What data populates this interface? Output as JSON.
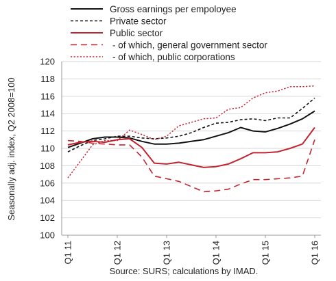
{
  "chart_data": {
    "type": "line",
    "x": [
      "Q1 11",
      "Q2 11",
      "Q3 11",
      "Q4 11",
      "Q1 12",
      "Q2 12",
      "Q3 12",
      "Q4 12",
      "Q1 13",
      "Q2 13",
      "Q3 13",
      "Q4 13",
      "Q1 14",
      "Q2 14",
      "Q3 14",
      "Q4 14",
      "Q1 15",
      "Q2 15",
      "Q3 15",
      "Q4 15",
      "Q1 16"
    ],
    "x_tick_labels": [
      "Q1 11",
      "Q1 12",
      "Q1 13",
      "Q1 14",
      "Q1 15",
      "Q1 16"
    ],
    "ylabel": "Seasonally adj. index, Q2 2008=100",
    "ylim": [
      100,
      120
    ],
    "yticks": [
      100,
      102,
      104,
      106,
      108,
      110,
      112,
      114,
      116,
      118,
      120
    ],
    "grid": true,
    "legend_position": "top-left",
    "source": "Source: SURS; calculations by IMAD.",
    "series": [
      {
        "name": "Gross earnings per empoloyee",
        "color": "#111111",
        "dash": "solid",
        "values": [
          110.1,
          110.6,
          111.1,
          111.3,
          111.3,
          111.2,
          110.8,
          110.5,
          110.5,
          110.6,
          110.8,
          111.0,
          111.4,
          111.8,
          112.4,
          112.0,
          111.9,
          112.3,
          112.8,
          113.4,
          114.3
        ]
      },
      {
        "name": "Private sector",
        "color": "#111111",
        "dash": "dashed",
        "values": [
          109.6,
          110.3,
          110.9,
          111.1,
          111.4,
          111.4,
          111.2,
          111.1,
          111.2,
          111.4,
          111.8,
          112.4,
          112.9,
          113.0,
          113.3,
          113.4,
          113.2,
          113.5,
          113.5,
          114.6,
          115.8
        ]
      },
      {
        "name": "Public sector",
        "color": "#c2232f",
        "dash": "solid",
        "values": [
          110.4,
          110.7,
          110.8,
          110.7,
          111.0,
          111.1,
          110.1,
          108.3,
          108.2,
          108.4,
          108.1,
          107.8,
          107.9,
          108.2,
          108.8,
          109.5,
          109.5,
          109.6,
          110.0,
          110.5,
          112.4
        ]
      },
      {
        "name": "- of which, general government sector",
        "color": "#c2232f",
        "dash": "longdash",
        "values": [
          110.9,
          110.8,
          110.6,
          110.5,
          110.4,
          110.4,
          109.0,
          106.8,
          106.5,
          106.2,
          105.6,
          105.0,
          105.1,
          105.3,
          105.9,
          106.4,
          106.4,
          106.5,
          106.6,
          106.8,
          111.0
        ]
      },
      {
        "name": "- of which, public corporations",
        "color": "#c2232f",
        "dash": "dotted",
        "values": [
          106.6,
          108.5,
          110.4,
          110.9,
          110.9,
          112.1,
          111.6,
          111.0,
          111.4,
          112.6,
          113.0,
          113.4,
          113.5,
          114.5,
          114.7,
          115.8,
          116.4,
          116.6,
          117.1,
          117.1,
          117.2
        ]
      }
    ]
  }
}
